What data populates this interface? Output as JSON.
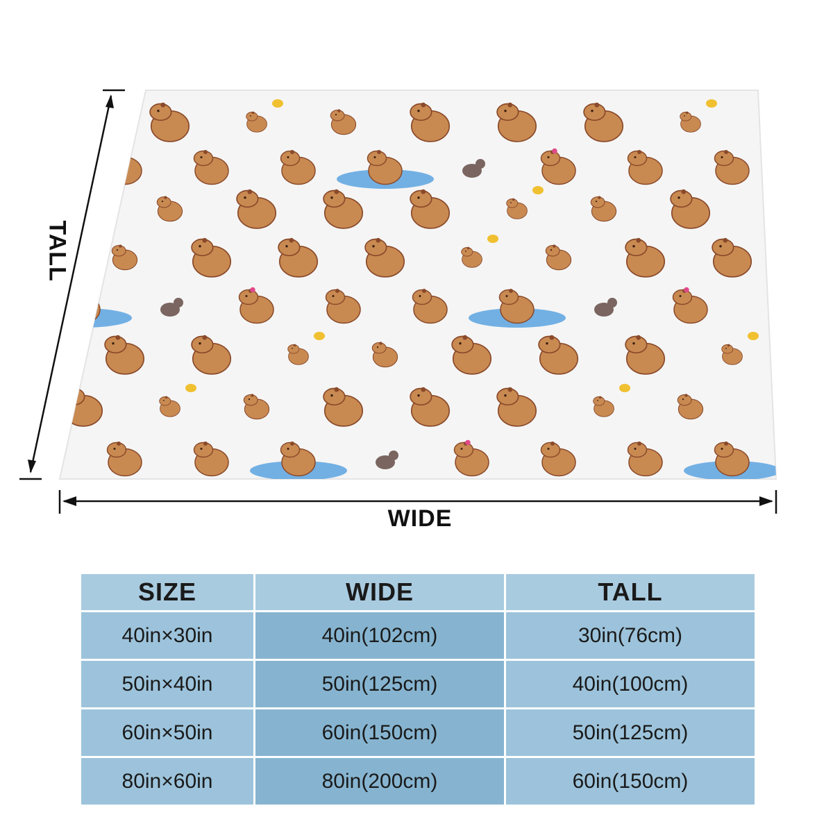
{
  "dimension_labels": {
    "wide": "WIDE",
    "tall": "TALL"
  },
  "colors": {
    "fabric": "#f5f5f5",
    "capybara": "#c98a52",
    "capybara_outline": "#8a4a2a",
    "water": "#5aa3e0",
    "small_animal": "#7a6560",
    "bird": "#f0c030",
    "flower": "#e04a8a",
    "grass": "#6aa84f",
    "table_header": "#a9cbe0",
    "table_light": "#9cc3db",
    "table_dark": "#86b4d0"
  },
  "table": {
    "headers": [
      "SIZE",
      "WIDE",
      "TALL"
    ],
    "rows": [
      [
        "40in×30in",
        "40in(102cm)",
        "30in(76cm)"
      ],
      [
        "50in×40in",
        "50in(125cm)",
        "40in(100cm)"
      ],
      [
        "60in×50in",
        "60in(150cm)",
        "50in(125cm)"
      ],
      [
        "80in×60in",
        "80in(200cm)",
        "60in(150cm)"
      ]
    ]
  }
}
